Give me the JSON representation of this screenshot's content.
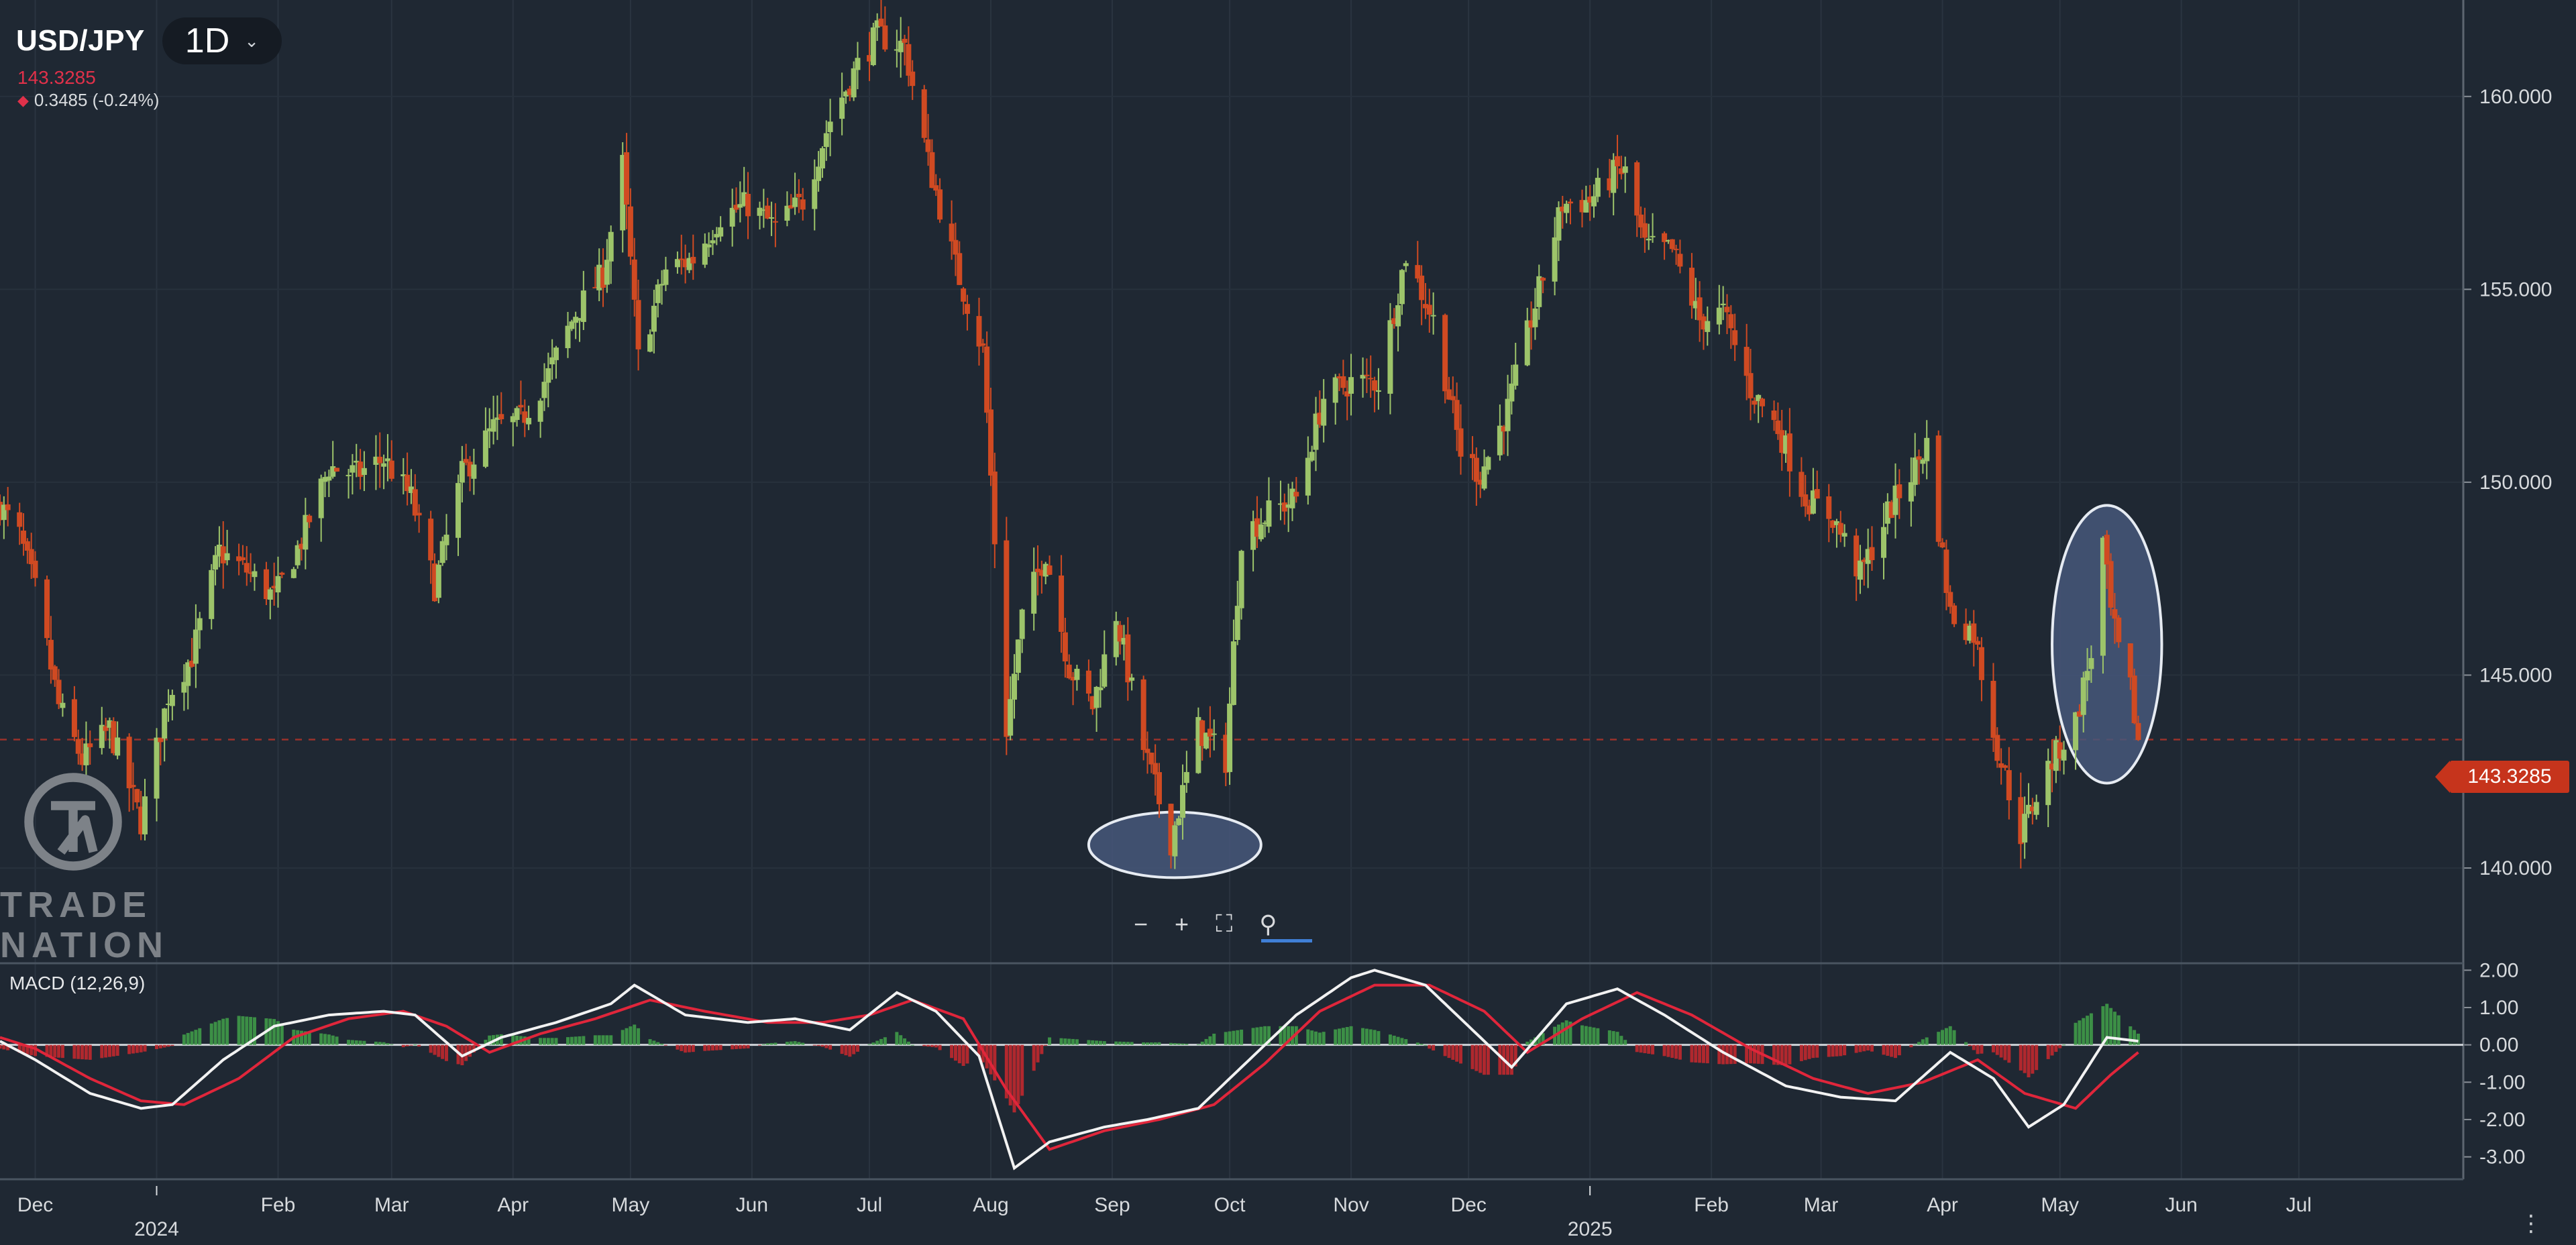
{
  "header": {
    "symbol": "USD/JPY",
    "timeframe": "1D",
    "timeframe_chevron_icon": "chevron-down-icon",
    "last_price": "143.3285",
    "change": "0.3485 (-0.24%)",
    "change_icon": "diamond-down-icon"
  },
  "colors": {
    "background": "#1f2833",
    "up_candle": "#9dc46a",
    "down_candle": "#d04a22",
    "macd_line": "#f2f2f2",
    "signal_line": "#e0263b",
    "hist_up": "#3f9a48",
    "hist_down": "#c0282e",
    "price_tag": "#c6341c",
    "highlight_fill": "#46577a",
    "highlight_stroke": "#e6ebf2"
  },
  "price_tag": "143.3285",
  "macd_label": "MACD (12,26,9)",
  "zoom_controls": {
    "minus_icon": "zoom-out-icon",
    "plus_icon": "zoom-in-icon",
    "fit_icon": "fit-screen-icon",
    "reset_icon": "magnifier-reset-icon"
  },
  "logo": {
    "line1": "TRADE",
    "line2": "NATION"
  },
  "menu_icon": "vertical-dots-icon",
  "chart_data": [
    {
      "type": "candlestick",
      "title": "USD/JPY",
      "ylim": [
        137.6,
        162.5
      ],
      "yticks": [
        "160.000",
        "155.000",
        "150.000",
        "145.000",
        "140.000"
      ],
      "ytick_values": [
        160,
        155,
        150,
        145,
        140
      ],
      "current_price": 143.3285,
      "xlim": [
        "2023-11-22",
        "2025-08-12"
      ],
      "xticks": [
        {
          "date": "2023-12-01",
          "label": "Dec"
        },
        {
          "date": "2024-01-01",
          "label": "",
          "year": "2024"
        },
        {
          "date": "2024-02-01",
          "label": "Feb"
        },
        {
          "date": "2024-03-01",
          "label": "Mar"
        },
        {
          "date": "2024-04-01",
          "label": "Apr"
        },
        {
          "date": "2024-05-01",
          "label": "May"
        },
        {
          "date": "2024-06-01",
          "label": "Jun"
        },
        {
          "date": "2024-07-01",
          "label": "Jul"
        },
        {
          "date": "2024-08-01",
          "label": "Aug"
        },
        {
          "date": "2024-09-01",
          "label": "Sep"
        },
        {
          "date": "2024-10-01",
          "label": "Oct"
        },
        {
          "date": "2024-11-01",
          "label": "Nov"
        },
        {
          "date": "2024-12-01",
          "label": "Dec"
        },
        {
          "date": "2025-01-01",
          "label": "",
          "year": "2025"
        },
        {
          "date": "2025-02-01",
          "label": "Feb"
        },
        {
          "date": "2025-03-01",
          "label": "Mar"
        },
        {
          "date": "2025-04-01",
          "label": "Apr"
        },
        {
          "date": "2025-05-01",
          "label": "May"
        },
        {
          "date": "2025-06-01",
          "label": "Jun"
        },
        {
          "date": "2025-07-01",
          "label": "Jul"
        }
      ],
      "close_path": [
        [
          "2023-11-22",
          149.4
        ],
        [
          "2023-11-27",
          148.6
        ],
        [
          "2023-12-01",
          147.2
        ],
        [
          "2023-12-07",
          144.2
        ],
        [
          "2023-12-13",
          142.8
        ],
        [
          "2023-12-20",
          143.6
        ],
        [
          "2023-12-28",
          141.2
        ],
        [
          "2024-01-04",
          144.5
        ],
        [
          "2024-01-10",
          145.5
        ],
        [
          "2024-01-17",
          148.2
        ],
        [
          "2024-01-24",
          147.7
        ],
        [
          "2024-01-31",
          147.0
        ],
        [
          "2024-02-07",
          148.5
        ],
        [
          "2024-02-14",
          150.4
        ],
        [
          "2024-02-21",
          150.2
        ],
        [
          "2024-02-28",
          150.6
        ],
        [
          "2024-03-06",
          149.6
        ],
        [
          "2024-03-12",
          147.3
        ],
        [
          "2024-03-19",
          150.2
        ],
        [
          "2024-03-27",
          151.4
        ],
        [
          "2024-04-03",
          151.6
        ],
        [
          "2024-04-10",
          152.8
        ],
        [
          "2024-04-17",
          154.4
        ],
        [
          "2024-04-24",
          155.4
        ],
        [
          "2024-04-29",
          158.2
        ],
        [
          "2024-05-03",
          153.2
        ],
        [
          "2024-05-10",
          155.5
        ],
        [
          "2024-05-17",
          155.8
        ],
        [
          "2024-05-24",
          156.9
        ],
        [
          "2024-05-31",
          157.2
        ],
        [
          "2024-06-07",
          156.6
        ],
        [
          "2024-06-14",
          157.3
        ],
        [
          "2024-06-21",
          159.4
        ],
        [
          "2024-06-28",
          160.8
        ],
        [
          "2024-07-03",
          161.6
        ],
        [
          "2024-07-10",
          161.3
        ],
        [
          "2024-07-16",
          158.3
        ],
        [
          "2024-07-23",
          155.6
        ],
        [
          "2024-07-30",
          153.4
        ],
        [
          "2024-08-05",
          143.6
        ],
        [
          "2024-08-09",
          146.5
        ],
        [
          "2024-08-15",
          148.2
        ],
        [
          "2024-08-21",
          145.2
        ],
        [
          "2024-08-27",
          144.2
        ],
        [
          "2024-09-02",
          146.6
        ],
        [
          "2024-09-09",
          143.1
        ],
        [
          "2024-09-16",
          140.7
        ],
        [
          "2024-09-23",
          143.6
        ],
        [
          "2024-09-30",
          142.8
        ],
        [
          "2024-10-04",
          148.6
        ],
        [
          "2024-10-11",
          149.2
        ],
        [
          "2024-10-18",
          149.6
        ],
        [
          "2024-10-25",
          152.2
        ],
        [
          "2024-11-01",
          152.6
        ],
        [
          "2024-11-08",
          152.6
        ],
        [
          "2024-11-15",
          155.9
        ],
        [
          "2024-11-22",
          154.2
        ],
        [
          "2024-11-29",
          150.8
        ],
        [
          "2024-12-04",
          150.2
        ],
        [
          "2024-12-11",
          151.9
        ],
        [
          "2024-12-18",
          154.6
        ],
        [
          "2024-12-25",
          157.2
        ],
        [
          "2025-01-01",
          157.3
        ],
        [
          "2025-01-08",
          158.1
        ],
        [
          "2025-01-10",
          158.0
        ],
        [
          "2025-01-15",
          156.1
        ],
        [
          "2025-01-22",
          156.0
        ],
        [
          "2025-01-29",
          154.2
        ],
        [
          "2025-02-04",
          154.4
        ],
        [
          "2025-02-11",
          152.4
        ],
        [
          "2025-02-18",
          151.4
        ],
        [
          "2025-02-25",
          149.6
        ],
        [
          "2025-03-04",
          149.1
        ],
        [
          "2025-03-11",
          147.6
        ],
        [
          "2025-03-18",
          149.2
        ],
        [
          "2025-03-25",
          150.4
        ],
        [
          "2025-03-28",
          151.0
        ],
        [
          "2025-04-03",
          146.6
        ],
        [
          "2025-04-09",
          146.1
        ],
        [
          "2025-04-15",
          143.1
        ],
        [
          "2025-04-21",
          140.9
        ],
        [
          "2025-04-28",
          142.6
        ],
        [
          "2025-05-05",
          143.8
        ],
        [
          "2025-05-09",
          145.6
        ],
        [
          "2025-05-12",
          148.4
        ],
        [
          "2025-05-14",
          146.6
        ],
        [
          "2025-05-16",
          145.6
        ],
        [
          "2025-05-19",
          144.6
        ],
        [
          "2025-05-21",
          143.3
        ]
      ],
      "volatility": 0.55,
      "annotations": [
        {
          "shape": "ellipse",
          "cx": "2024-09-17",
          "cy": 140.6,
          "rx_days": 22,
          "ry_price": 0.85
        },
        {
          "shape": "ellipse",
          "cx": "2025-05-13",
          "cy": 145.8,
          "rx_days": 14,
          "ry_price": 3.6
        }
      ]
    },
    {
      "type": "macd",
      "title": "MACD (12,26,9)",
      "ylim": [
        -3.6,
        2.15
      ],
      "yticks": [
        "2.00",
        "1.00",
        "0.00",
        "-1.00",
        "-2.00",
        "-3.00"
      ],
      "ytick_values": [
        2,
        1,
        0,
        -1,
        -2,
        -3
      ],
      "macd_path": [
        [
          "2023-11-22",
          0.1
        ],
        [
          "2023-12-01",
          -0.4
        ],
        [
          "2023-12-15",
          -1.3
        ],
        [
          "2023-12-28",
          -1.7
        ],
        [
          "2024-01-05",
          -1.6
        ],
        [
          "2024-01-18",
          -0.4
        ],
        [
          "2024-01-31",
          0.5
        ],
        [
          "2024-02-14",
          0.8
        ],
        [
          "2024-02-28",
          0.9
        ],
        [
          "2024-03-07",
          0.8
        ],
        [
          "2024-03-19",
          -0.3
        ],
        [
          "2024-03-29",
          0.2
        ],
        [
          "2024-04-12",
          0.6
        ],
        [
          "2024-04-26",
          1.1
        ],
        [
          "2024-05-02",
          1.6
        ],
        [
          "2024-05-15",
          0.8
        ],
        [
          "2024-05-31",
          0.6
        ],
        [
          "2024-06-12",
          0.7
        ],
        [
          "2024-06-26",
          0.4
        ],
        [
          "2024-07-08",
          1.4
        ],
        [
          "2024-07-18",
          0.9
        ],
        [
          "2024-07-29",
          -0.3
        ],
        [
          "2024-08-07",
          -3.3
        ],
        [
          "2024-08-16",
          -2.6
        ],
        [
          "2024-08-30",
          -2.2
        ],
        [
          "2024-09-10",
          -2.0
        ],
        [
          "2024-09-23",
          -1.7
        ],
        [
          "2024-10-07",
          -0.3
        ],
        [
          "2024-10-18",
          0.8
        ],
        [
          "2024-11-01",
          1.8
        ],
        [
          "2024-11-07",
          2.0
        ],
        [
          "2024-11-20",
          1.6
        ],
        [
          "2024-12-03",
          0.3
        ],
        [
          "2024-12-12",
          -0.6
        ],
        [
          "2024-12-26",
          1.1
        ],
        [
          "2025-01-08",
          1.5
        ],
        [
          "2025-01-20",
          0.8
        ],
        [
          "2025-02-04",
          -0.2
        ],
        [
          "2025-02-20",
          -1.1
        ],
        [
          "2025-03-06",
          -1.4
        ],
        [
          "2025-03-20",
          -1.5
        ],
        [
          "2025-04-03",
          -0.2
        ],
        [
          "2025-04-14",
          -0.9
        ],
        [
          "2025-04-23",
          -2.2
        ],
        [
          "2025-05-02",
          -1.6
        ],
        [
          "2025-05-13",
          0.2
        ],
        [
          "2025-05-21",
          0.1
        ]
      ],
      "signal_path": [
        [
          "2023-11-22",
          0.2
        ],
        [
          "2023-12-01",
          -0.1
        ],
        [
          "2023-12-15",
          -0.9
        ],
        [
          "2023-12-28",
          -1.5
        ],
        [
          "2024-01-08",
          -1.6
        ],
        [
          "2024-01-22",
          -0.9
        ],
        [
          "2024-02-05",
          0.2
        ],
        [
          "2024-02-19",
          0.7
        ],
        [
          "2024-03-04",
          0.9
        ],
        [
          "2024-03-15",
          0.5
        ],
        [
          "2024-03-26",
          -0.2
        ],
        [
          "2024-04-08",
          0.3
        ],
        [
          "2024-04-22",
          0.7
        ],
        [
          "2024-05-06",
          1.2
        ],
        [
          "2024-05-20",
          0.9
        ],
        [
          "2024-06-05",
          0.6
        ],
        [
          "2024-06-19",
          0.6
        ],
        [
          "2024-07-01",
          0.8
        ],
        [
          "2024-07-12",
          1.2
        ],
        [
          "2024-07-25",
          0.7
        ],
        [
          "2024-08-05",
          -1.2
        ],
        [
          "2024-08-16",
          -2.8
        ],
        [
          "2024-08-30",
          -2.3
        ],
        [
          "2024-09-13",
          -2.0
        ],
        [
          "2024-09-27",
          -1.6
        ],
        [
          "2024-10-10",
          -0.5
        ],
        [
          "2024-10-24",
          0.9
        ],
        [
          "2024-11-07",
          1.6
        ],
        [
          "2024-11-21",
          1.6
        ],
        [
          "2024-12-05",
          0.9
        ],
        [
          "2024-12-16",
          -0.2
        ],
        [
          "2024-12-30",
          0.7
        ],
        [
          "2025-01-13",
          1.4
        ],
        [
          "2025-01-27",
          0.8
        ],
        [
          "2025-02-11",
          -0.1
        ],
        [
          "2025-02-27",
          -0.9
        ],
        [
          "2025-03-13",
          -1.3
        ],
        [
          "2025-03-27",
          -1.0
        ],
        [
          "2025-04-10",
          -0.4
        ],
        [
          "2025-04-22",
          -1.3
        ],
        [
          "2025-05-05",
          -1.7
        ],
        [
          "2025-05-14",
          -0.8
        ],
        [
          "2025-05-21",
          -0.2
        ]
      ]
    }
  ]
}
